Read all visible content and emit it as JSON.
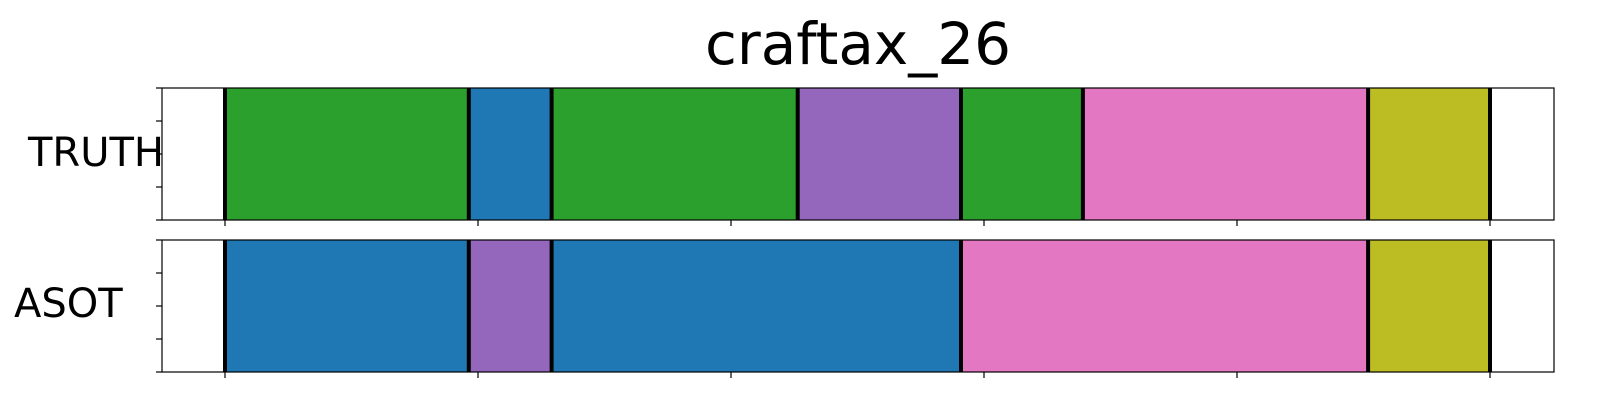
{
  "chart_data": {
    "type": "segment-timeline",
    "title": "craftax_26",
    "xlim": [
      0,
      275
    ],
    "x_ticks": [
      0,
      55,
      110,
      165,
      220,
      275
    ],
    "rows": [
      {
        "name": "TRUTH",
        "segments": [
          {
            "start": 0,
            "end": 53,
            "color": "#2ca02c"
          },
          {
            "start": 53,
            "end": 71,
            "color": "#1f77b4"
          },
          {
            "start": 71,
            "end": 124.5,
            "color": "#2ca02c"
          },
          {
            "start": 124.5,
            "end": 160,
            "color": "#9467bd"
          },
          {
            "start": 160,
            "end": 186.5,
            "color": "#2ca02c"
          },
          {
            "start": 186.5,
            "end": 248.5,
            "color": "#e377c2"
          },
          {
            "start": 248.5,
            "end": 275,
            "color": "#bcbd22"
          }
        ]
      },
      {
        "name": "ASOT",
        "segments": [
          {
            "start": 0,
            "end": 53,
            "color": "#1f77b4"
          },
          {
            "start": 53,
            "end": 71,
            "color": "#9467bd"
          },
          {
            "start": 71,
            "end": 160,
            "color": "#1f77b4"
          },
          {
            "start": 160,
            "end": 248.5,
            "color": "#e377c2"
          },
          {
            "start": 248.5,
            "end": 275,
            "color": "#bcbd22"
          }
        ]
      }
    ],
    "grid": false,
    "legend": "none"
  }
}
